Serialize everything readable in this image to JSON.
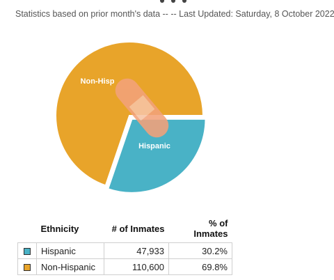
{
  "subtitle": "Statistics based on prior month's data -- -- Last Updated: Saturday, 8 October 2022",
  "chart_data": {
    "type": "pie",
    "title": "",
    "slices": [
      {
        "label": "Hispanic",
        "value": 47933,
        "percent": 30.2,
        "color": "#49b2c6"
      },
      {
        "label": "Non-Hispanic",
        "value": 110600,
        "percent": 69.8,
        "color": "#e8a42a"
      }
    ],
    "start_angle_deg": 0,
    "direction": "clockwise",
    "exploded_slice": "Hispanic",
    "label_color": "#ffffff",
    "slice_labels": [
      "Hispanic",
      "Non-Hisp"
    ]
  },
  "table": {
    "headers": [
      "Ethnicity",
      "# of Inmates",
      "% of Inmates"
    ],
    "rows": [
      {
        "color": "#49b2c6",
        "name": "Hispanic",
        "count": "47,933",
        "pct": "30.2%"
      },
      {
        "color": "#e8a42a",
        "name": "Non-Hispanic",
        "count": "110,600",
        "pct": "69.8%"
      }
    ]
  },
  "overlay": {
    "icon": "bandage-icon",
    "color": "#f3a27a"
  }
}
